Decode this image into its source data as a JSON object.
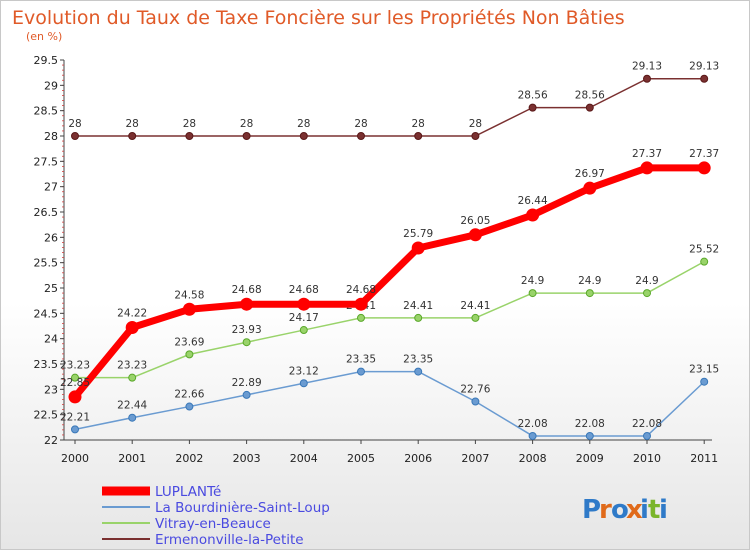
{
  "chart_data": {
    "type": "line",
    "title": "Evolution du Taux de Taxe Foncière sur les Propriétés Non Bâties",
    "subtitle": "(en %)",
    "x": [
      "2000",
      "2001",
      "2002",
      "2003",
      "2004",
      "2005",
      "2006",
      "2007",
      "2008",
      "2009",
      "2010",
      "2011"
    ],
    "ylim": [
      22,
      29.5
    ],
    "yticks": [
      "22",
      "22.5",
      "23",
      "23.5",
      "24",
      "24.5",
      "25",
      "25.5",
      "26",
      "26.5",
      "27",
      "27.5",
      "28",
      "28.5",
      "29",
      "29.5"
    ],
    "grid": false,
    "legend_position": "bottom-left",
    "series": [
      {
        "name": "LUPLANTé",
        "color": "#ff0000",
        "values": [
          22.85,
          24.22,
          24.58,
          24.68,
          24.68,
          24.68,
          25.79,
          26.05,
          26.44,
          26.97,
          27.37,
          27.37
        ],
        "labels": [
          "22.85",
          "24.22",
          "24.58",
          "24.68",
          "24.68",
          "24.68",
          "25.79",
          "26.05",
          "26.44",
          "26.97",
          "27.37",
          "27.37"
        ]
      },
      {
        "name": "La Bourdinière-Saint-Loup",
        "color": "#6a9bd1",
        "values": [
          22.21,
          22.44,
          22.66,
          22.89,
          23.12,
          23.35,
          23.35,
          22.76,
          22.08,
          22.08,
          22.08,
          23.15
        ],
        "labels": [
          "22.21",
          "22.44",
          "22.66",
          "22.89",
          "23.12",
          "23.35",
          "23.35",
          "22.76",
          "22.08",
          "22.08",
          "22.08",
          "23.15"
        ]
      },
      {
        "name": "Vitray-en-Beauce",
        "color": "#99d36a",
        "values": [
          23.23,
          23.23,
          23.69,
          23.93,
          24.17,
          24.41,
          24.41,
          24.41,
          24.9,
          24.9,
          24.9,
          25.52
        ],
        "labels": [
          "23.23",
          "23.23",
          "23.69",
          "23.93",
          "24.17",
          "24.41",
          "24.41",
          "24.41",
          "24.9",
          "24.9",
          "24.9",
          "25.52"
        ]
      },
      {
        "name": "Ermenonville-la-Petite",
        "color": "#7a3030",
        "values": [
          28,
          28,
          28,
          28,
          28,
          28,
          28,
          28,
          28.56,
          28.56,
          29.13,
          29.13
        ],
        "labels": [
          "28",
          "28",
          "28",
          "28",
          "28",
          "28",
          "28",
          "28",
          "28.56",
          "28.56",
          "29.13",
          "29.13"
        ]
      }
    ]
  },
  "logo": {
    "text": "Proxiti",
    "letters": [
      "P",
      "r",
      "o",
      "x",
      "i",
      "t",
      "i"
    ],
    "letter_colors": [
      "#2f7ac8",
      "#e06a1a",
      "#2f7ac8",
      "#e06a1a",
      "#2f7ac8",
      "#7ab52a",
      "#2f7ac8"
    ]
  }
}
